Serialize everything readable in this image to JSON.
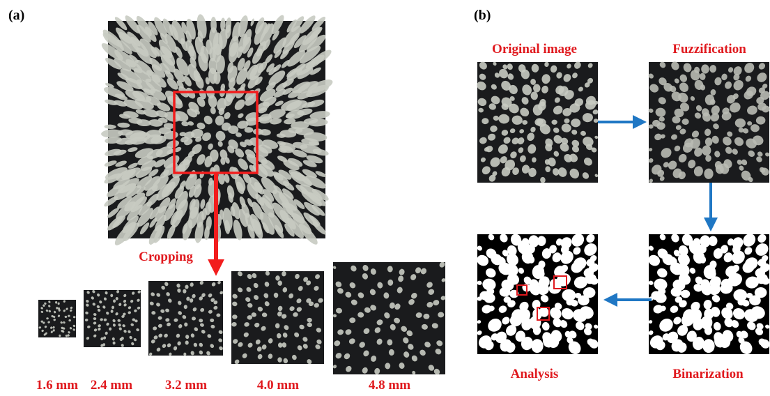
{
  "panels": [
    {
      "label": "(a)",
      "crop_label": "Cropping",
      "sizes": [
        "1.6 mm",
        "2.4 mm",
        "3.2 mm",
        "4.0 mm",
        "4.8 mm"
      ]
    },
    {
      "label": "(b)",
      "steps": [
        "Original image",
        "Fuzzification",
        "Binarization",
        "Analysis"
      ]
    }
  ]
}
